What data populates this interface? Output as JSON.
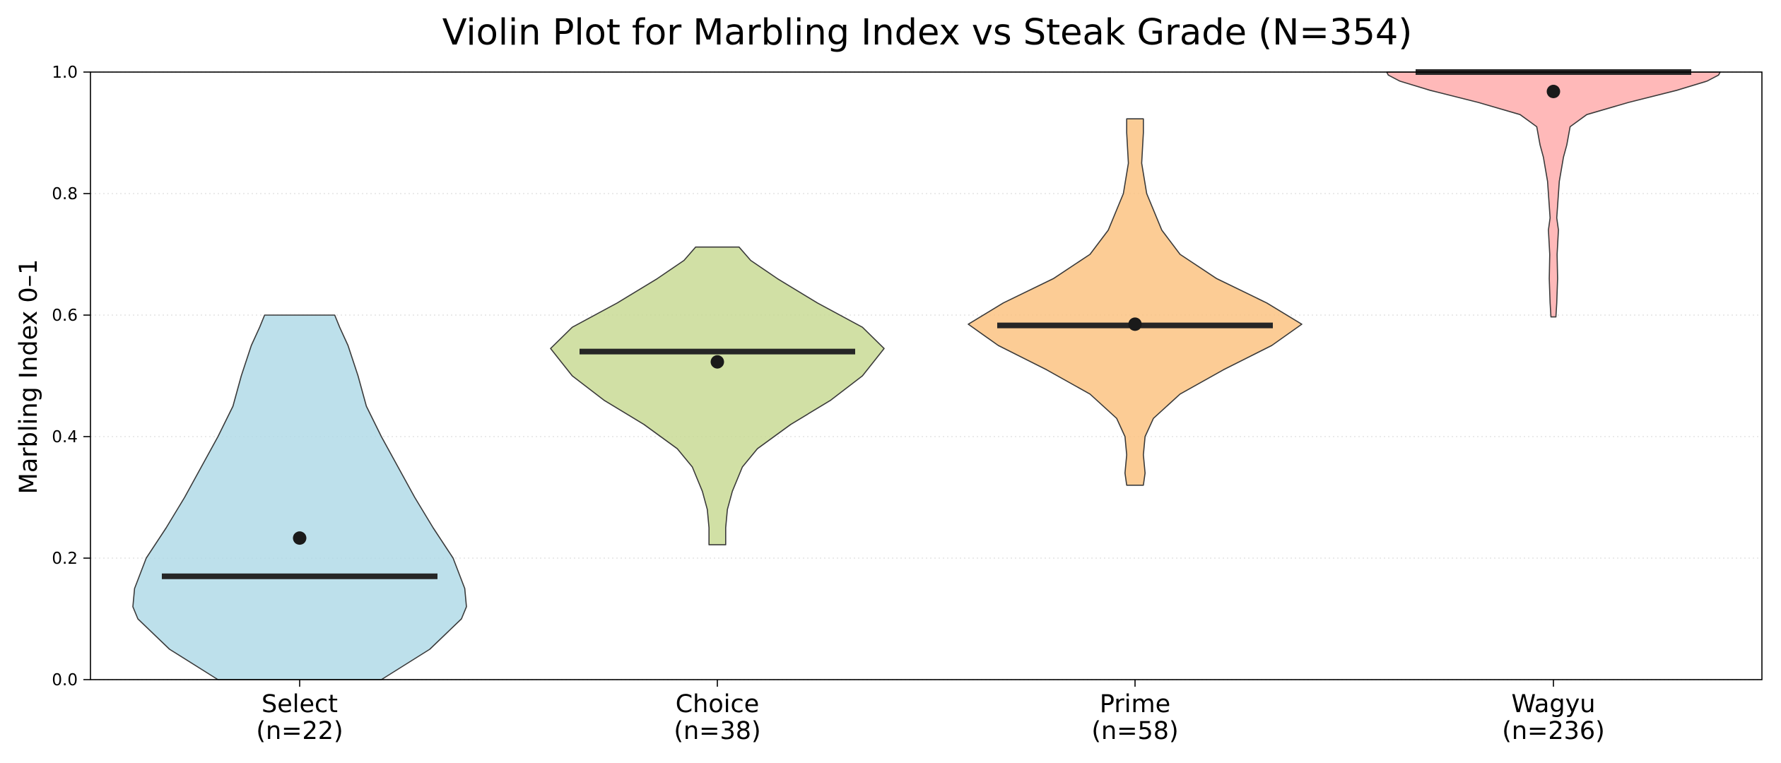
{
  "chart_data": {
    "type": "violin",
    "title": "Violin Plot for Marbling Index vs Steak Grade (N=354)",
    "xlabel": "",
    "ylabel": "Marbling Index 0–1",
    "ylim": [
      0,
      1
    ],
    "yticks": [
      "0.0",
      "0.2",
      "0.4",
      "0.6",
      "0.8",
      "1.0"
    ],
    "grid": "horizontal dotted",
    "categories": [
      {
        "label": "Select",
        "n_label": "(n=22)",
        "color": "#add8e6",
        "min": 0.0,
        "max": 0.6,
        "median": 0.17,
        "mean": 0.233,
        "density": [
          [
            0.0,
            0.49
          ],
          [
            0.05,
            0.78
          ],
          [
            0.1,
            0.97
          ],
          [
            0.12,
            1.0
          ],
          [
            0.15,
            0.99
          ],
          [
            0.2,
            0.92
          ],
          [
            0.25,
            0.8
          ],
          [
            0.3,
            0.69
          ],
          [
            0.35,
            0.59
          ],
          [
            0.4,
            0.49
          ],
          [
            0.45,
            0.4
          ],
          [
            0.5,
            0.35
          ],
          [
            0.55,
            0.29
          ],
          [
            0.58,
            0.24
          ],
          [
            0.6,
            0.21
          ]
        ]
      },
      {
        "label": "Choice",
        "n_label": "(n=38)",
        "color": "#c5d88e",
        "min": 0.22,
        "max": 0.712,
        "median": 0.54,
        "mean": 0.523,
        "density": [
          [
            0.222,
            0.05
          ],
          [
            0.25,
            0.05
          ],
          [
            0.28,
            0.06
          ],
          [
            0.31,
            0.09
          ],
          [
            0.35,
            0.15
          ],
          [
            0.38,
            0.24
          ],
          [
            0.42,
            0.44
          ],
          [
            0.46,
            0.68
          ],
          [
            0.5,
            0.87
          ],
          [
            0.545,
            1.0
          ],
          [
            0.58,
            0.87
          ],
          [
            0.62,
            0.6
          ],
          [
            0.66,
            0.36
          ],
          [
            0.69,
            0.2
          ],
          [
            0.712,
            0.13
          ]
        ]
      },
      {
        "label": "Prime",
        "n_label": "(n=58)",
        "color": "#fbbf7a",
        "min": 0.318,
        "max": 0.923,
        "median": 0.583,
        "mean": 0.585,
        "density": [
          [
            0.32,
            0.05
          ],
          [
            0.34,
            0.06
          ],
          [
            0.37,
            0.05
          ],
          [
            0.4,
            0.06
          ],
          [
            0.43,
            0.11
          ],
          [
            0.47,
            0.27
          ],
          [
            0.51,
            0.53
          ],
          [
            0.55,
            0.82
          ],
          [
            0.585,
            1.0
          ],
          [
            0.62,
            0.79
          ],
          [
            0.66,
            0.49
          ],
          [
            0.7,
            0.27
          ],
          [
            0.74,
            0.16
          ],
          [
            0.8,
            0.07
          ],
          [
            0.85,
            0.04
          ],
          [
            0.9,
            0.05
          ],
          [
            0.923,
            0.05
          ]
        ]
      },
      {
        "label": "Wagyu",
        "n_label": "(n=236)",
        "color": "#ffa7a7",
        "min": 0.597,
        "max": 1.0,
        "median": 1.0,
        "mean": 0.968,
        "density": [
          [
            0.597,
            0.015
          ],
          [
            0.62,
            0.02
          ],
          [
            0.66,
            0.025
          ],
          [
            0.7,
            0.022
          ],
          [
            0.74,
            0.03
          ],
          [
            0.76,
            0.02
          ],
          [
            0.78,
            0.025
          ],
          [
            0.82,
            0.035
          ],
          [
            0.86,
            0.06
          ],
          [
            0.88,
            0.08
          ],
          [
            0.91,
            0.1
          ],
          [
            0.93,
            0.2
          ],
          [
            0.95,
            0.45
          ],
          [
            0.97,
            0.74
          ],
          [
            0.985,
            0.92
          ],
          [
            0.995,
            0.99
          ],
          [
            1.0,
            1.0
          ]
        ]
      }
    ]
  }
}
